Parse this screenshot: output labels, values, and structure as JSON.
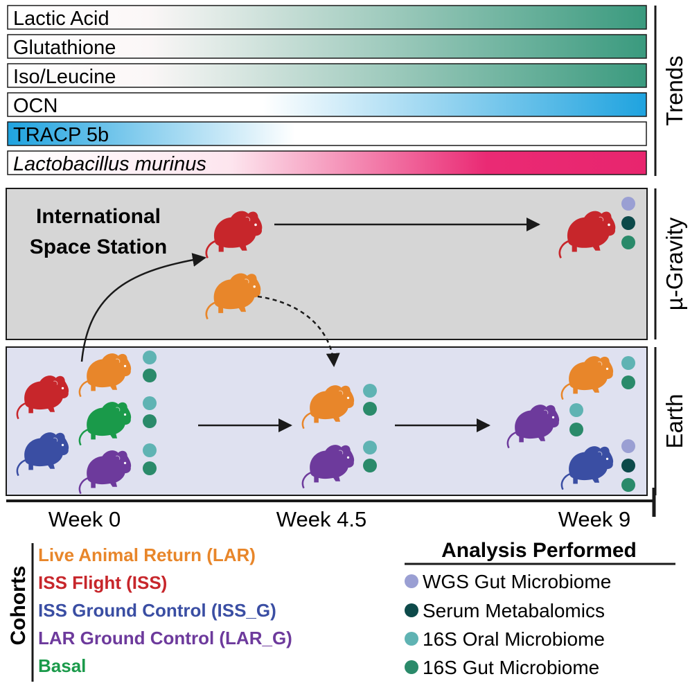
{
  "trends": {
    "label": "Trends",
    "bars": [
      {
        "name": "Lactic Acid",
        "italic": false,
        "direction": "increase",
        "color": "#3a9a7e"
      },
      {
        "name": "Glutathione",
        "italic": false,
        "direction": "increase",
        "color": "#3a9a7e"
      },
      {
        "name": "Iso/Leucine",
        "italic": false,
        "direction": "increase",
        "color": "#3a9a7e"
      },
      {
        "name": "OCN",
        "italic": false,
        "direction": "increase",
        "color": "#1fa3df"
      },
      {
        "name": "TRACP 5b",
        "italic": false,
        "direction": "decrease",
        "color": "#1fa3df"
      },
      {
        "name": "Lactobacillus murinus",
        "italic": true,
        "direction": "increase",
        "color": "#e8256e"
      }
    ]
  },
  "gravity_panel": {
    "label": "µ-Gravity",
    "title_line1": "International",
    "title_line2": "Space Station",
    "background": "#d6d6d6"
  },
  "earth_panel": {
    "label": "Earth",
    "background": "#dfe1f0"
  },
  "timeline": {
    "labels": [
      "Week 0",
      "Week 4.5",
      "Week 9"
    ]
  },
  "cohorts": {
    "heading": "Cohorts",
    "items": [
      {
        "label": "Live Animal Return (LAR)",
        "color": "#e8862a"
      },
      {
        "label": "ISS Flight (ISS)",
        "color": "#c7262b"
      },
      {
        "label": "ISS Ground Control (ISS_G)",
        "color": "#3a4ea3"
      },
      {
        "label": "LAR Ground Control (LAR_G)",
        "color": "#6d3a9c"
      },
      {
        "label": "Basal",
        "color": "#1a9a4a"
      }
    ]
  },
  "analysis": {
    "heading": "Analysis Performed",
    "items": [
      {
        "label": "WGS Gut Microbiome",
        "color": "#9a9fd3"
      },
      {
        "label": "Serum Metabalomics",
        "color": "#0d4a4a"
      },
      {
        "label": "16S Oral Microbiome",
        "color": "#5fb3b3"
      },
      {
        "label": "16S Gut Microbiome",
        "color": "#2a8a6a"
      }
    ]
  }
}
